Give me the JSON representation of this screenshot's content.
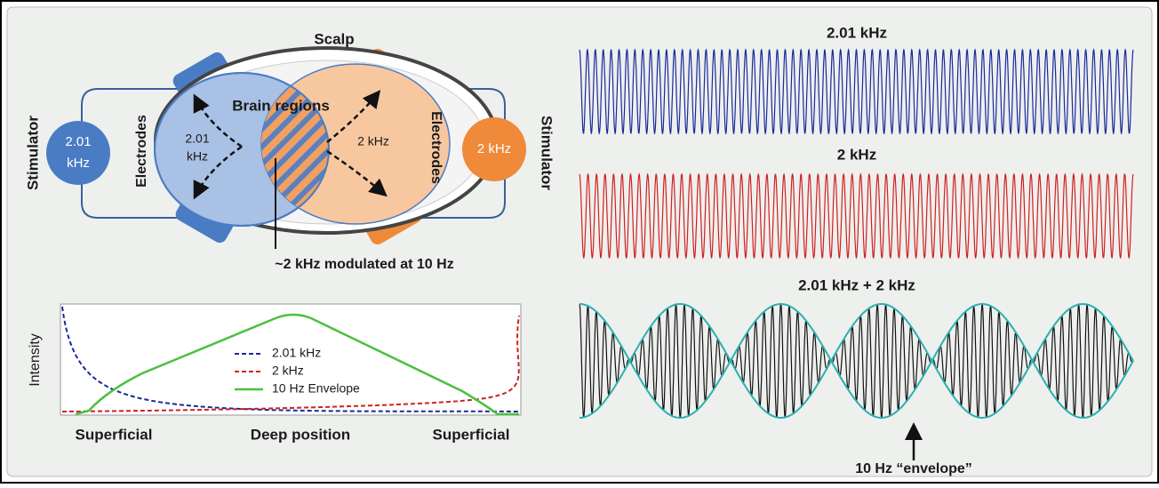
{
  "left_diagram": {
    "scalp": "Scalp",
    "brain_regions": "Brain regions",
    "left_stimulator": {
      "caption": "Stimulator",
      "label": [
        "2.01",
        "kHz"
      ]
    },
    "right_stimulator": {
      "caption": "Stimulator",
      "label": "2 kHz"
    },
    "left_electrodes": "Electrodes",
    "right_electrodes": "Electrodes",
    "left_region": [
      "2.01",
      "kHz"
    ],
    "right_region": "2 kHz",
    "overlap_note": "~2 kHz modulated at 10 Hz"
  },
  "intensity_plot": {
    "ylabel": "Intensity",
    "legend": [
      "2.01 kHz",
      "2 kHz",
      "10 Hz Envelope"
    ],
    "xlabels": [
      "Superficial",
      "Deep position",
      "Superficial"
    ]
  },
  "waveforms": {
    "titles": [
      "2.01 kHz",
      "2 kHz",
      "2.01 kHz + 2 kHz"
    ],
    "envelope_note": "10 Hz “envelope”"
  }
}
